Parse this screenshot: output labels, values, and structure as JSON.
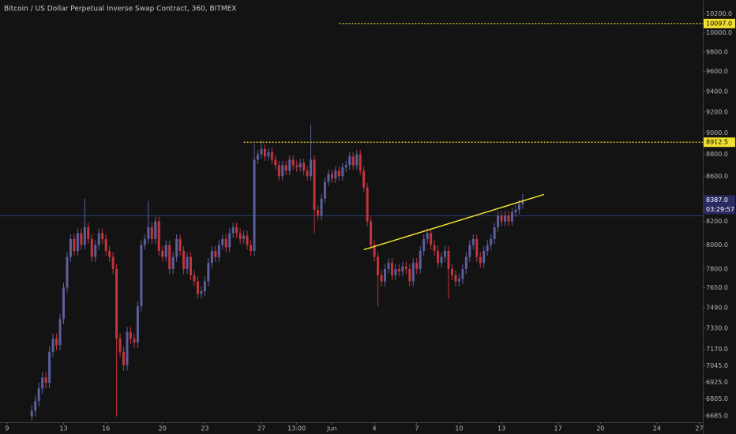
{
  "chart_data": {
    "type": "candlestick",
    "title": "Bitcoin / US Dollar Perpetual Inverse Swap Contract, 360, BITMEX",
    "yscale": "log",
    "xlim": [
      -9,
      190
    ],
    "ylim": [
      6640,
      10350
    ],
    "up_color": "#5c5f9e",
    "down_color": "#c2353e",
    "xticks": [
      {
        "value": -7,
        "label": "9"
      },
      {
        "value": 9,
        "label": "13"
      },
      {
        "value": 21,
        "label": "16"
      },
      {
        "value": 37,
        "label": "20"
      },
      {
        "value": 49,
        "label": "23"
      },
      {
        "value": 65,
        "label": "27"
      },
      {
        "value": 75,
        "label": "13:00"
      },
      {
        "value": 85,
        "label": "Jun"
      },
      {
        "value": 97,
        "label": "4"
      },
      {
        "value": 109,
        "label": "7"
      },
      {
        "value": 121,
        "label": "10"
      },
      {
        "value": 133,
        "label": "13"
      },
      {
        "value": 149,
        "label": "17"
      },
      {
        "value": 161,
        "label": "20"
      },
      {
        "value": 177,
        "label": "24"
      },
      {
        "value": 189,
        "label": "27"
      }
    ],
    "yticks": [
      {
        "value": 6685,
        "label": "6685.0"
      },
      {
        "value": 6805,
        "label": "6805.0"
      },
      {
        "value": 6925,
        "label": "6925.0"
      },
      {
        "value": 7045,
        "label": "7045.0"
      },
      {
        "value": 7170,
        "label": "7170.0"
      },
      {
        "value": 7330,
        "label": "7330.0"
      },
      {
        "value": 7490,
        "label": "7490.0"
      },
      {
        "value": 7650,
        "label": "7650.0"
      },
      {
        "value": 7800,
        "label": "7800.0"
      },
      {
        "value": 8000,
        "label": "8000.0"
      },
      {
        "value": 8200,
        "label": "8200.0"
      },
      {
        "value": 8600,
        "label": "8600.0"
      },
      {
        "value": 8800,
        "label": "8800.0"
      },
      {
        "value": 9000,
        "label": "9000.0"
      },
      {
        "value": 9200,
        "label": "9200.0"
      },
      {
        "value": 9400,
        "label": "9400.0"
      },
      {
        "value": 9600,
        "label": "9600.0"
      },
      {
        "value": 9800,
        "label": "9800.0"
      },
      {
        "value": 10000,
        "label": "10000.0"
      },
      {
        "value": 10200,
        "label": "10200.0"
      }
    ],
    "open": [
      6680,
      6720,
      6790,
      6880,
      6960,
      6920,
      7150,
      7250,
      7200,
      7400,
      7650,
      7900,
      8050,
      7950,
      8100,
      8000,
      8150,
      8050,
      7900,
      8000,
      8100,
      8050,
      7950,
      7900,
      7800,
      7250,
      7150,
      7050,
      7300,
      7250,
      7220,
      7500,
      8000,
      8050,
      8150,
      8050,
      8200,
      7950,
      7900,
      8000,
      7800,
      7900,
      8050,
      7950,
      7800,
      7900,
      7750,
      7700,
      7600,
      7620,
      7700,
      7850,
      7950,
      7900,
      8000,
      8050,
      7980,
      8100,
      8150,
      8100,
      8050,
      8080,
      8000,
      7950,
      8750,
      8800,
      8850,
      8780,
      8820,
      8750,
      8700,
      8600,
      8700,
      8650,
      8750,
      8700,
      8680,
      8720,
      8650,
      8600,
      8750,
      8300,
      8250,
      8400,
      8550,
      8620,
      8580,
      8650,
      8600,
      8680,
      8700,
      8780,
      8700,
      8800,
      8650,
      8500,
      8200,
      8000,
      7900,
      7750,
      7700,
      7800,
      7850,
      7750,
      7800,
      7780,
      7820,
      7800,
      7700,
      7850,
      7800,
      7950,
      8050,
      8100,
      8000,
      7950,
      7850,
      7900,
      7950,
      7800,
      7750,
      7700,
      7720,
      7800,
      7900,
      8000,
      8050,
      7900,
      7850,
      7950,
      8000,
      8050,
      8150,
      8250,
      8200,
      8250,
      8200,
      8280,
      8300,
      8350
    ],
    "high": [
      6760,
      6830,
      6920,
      7000,
      7000,
      7190,
      7290,
      7290,
      7440,
      7690,
      7940,
      8090,
      8090,
      8140,
      8140,
      8400,
      8190,
      8090,
      8040,
      8140,
      8140,
      8090,
      7990,
      7940,
      7840,
      7290,
      7190,
      7340,
      7340,
      7290,
      7540,
      8040,
      8090,
      8380,
      8190,
      8240,
      8240,
      7990,
      8040,
      8040,
      7940,
      8090,
      8090,
      7990,
      7940,
      7940,
      7790,
      7740,
      7660,
      7740,
      7890,
      7990,
      7990,
      8040,
      8090,
      8090,
      8140,
      8190,
      8190,
      8140,
      8120,
      8120,
      8040,
      8900,
      8840,
      8930,
      8890,
      8860,
      8860,
      8790,
      8740,
      8740,
      8740,
      8790,
      8790,
      8740,
      8760,
      8760,
      8690,
      9080,
      8790,
      8340,
      8440,
      8590,
      8660,
      8660,
      8690,
      8690,
      8720,
      8740,
      8820,
      8820,
      8840,
      8840,
      8690,
      8540,
      8240,
      8040,
      7940,
      7790,
      7840,
      7890,
      7890,
      7840,
      7840,
      7860,
      7860,
      7840,
      7890,
      7890,
      7990,
      8090,
      8140,
      8140,
      8040,
      7990,
      7940,
      7990,
      7990,
      7840,
      7790,
      7760,
      7840,
      7940,
      8040,
      8090,
      8090,
      7940,
      7990,
      8040,
      8090,
      8190,
      8290,
      8290,
      8290,
      8290,
      8320,
      8340,
      8390,
      8440
    ],
    "low": [
      6650,
      6680,
      6750,
      6840,
      6880,
      6880,
      7110,
      7160,
      7160,
      7360,
      7610,
      7860,
      7910,
      7910,
      7960,
      7960,
      8010,
      7860,
      7860,
      7960,
      8010,
      7910,
      7860,
      7760,
      6680,
      7110,
      7010,
      7010,
      7210,
      7180,
      7180,
      7460,
      7960,
      8010,
      8010,
      8010,
      7910,
      7860,
      7860,
      7760,
      7760,
      7860,
      7910,
      7760,
      7760,
      7710,
      7660,
      7560,
      7560,
      7580,
      7660,
      7810,
      7860,
      7860,
      7960,
      7940,
      7940,
      8060,
      8060,
      8010,
      8010,
      7960,
      7910,
      7910,
      8710,
      8760,
      8740,
      8740,
      8710,
      8660,
      8560,
      8560,
      8610,
      8610,
      8660,
      8640,
      8640,
      8610,
      8560,
      8560,
      8100,
      8210,
      8210,
      8360,
      8510,
      8540,
      8540,
      8560,
      8560,
      8640,
      8660,
      8660,
      8660,
      8610,
      8460,
      8160,
      7960,
      7860,
      7500,
      7660,
      7660,
      7760,
      7710,
      7710,
      7740,
      7740,
      7760,
      7660,
      7660,
      7760,
      7760,
      7910,
      8010,
      7960,
      7910,
      7810,
      7810,
      7860,
      7560,
      7710,
      7660,
      7660,
      7680,
      7760,
      7860,
      7960,
      7860,
      7810,
      7810,
      7910,
      7960,
      8010,
      8110,
      8160,
      8160,
      8160,
      8160,
      8240,
      8260,
      8310
    ],
    "close": [
      6720,
      6790,
      6880,
      6960,
      6920,
      7150,
      7250,
      7200,
      7400,
      7650,
      7900,
      8050,
      7950,
      8100,
      8000,
      8150,
      8050,
      7900,
      8000,
      8100,
      8050,
      7950,
      7900,
      7800,
      7250,
      7150,
      7050,
      7300,
      7250,
      7220,
      7500,
      8000,
      8050,
      8150,
      8050,
      8200,
      7950,
      7900,
      8000,
      7800,
      7900,
      8050,
      7950,
      7800,
      7900,
      7750,
      7700,
      7600,
      7620,
      7700,
      7850,
      7950,
      7900,
      8000,
      8050,
      7980,
      8100,
      8150,
      8100,
      8050,
      8080,
      8000,
      7950,
      8750,
      8800,
      8850,
      8780,
      8820,
      8750,
      8700,
      8600,
      8700,
      8650,
      8750,
      8700,
      8680,
      8720,
      8650,
      8600,
      8750,
      8300,
      8250,
      8400,
      8550,
      8620,
      8580,
      8650,
      8600,
      8680,
      8700,
      8780,
      8700,
      8800,
      8650,
      8500,
      8200,
      8000,
      7900,
      7750,
      7700,
      7800,
      7850,
      7750,
      7800,
      7780,
      7820,
      7800,
      7700,
      7850,
      7800,
      7950,
      8050,
      8100,
      8000,
      7950,
      7850,
      7900,
      7950,
      7800,
      7750,
      7700,
      7720,
      7800,
      7900,
      8000,
      8050,
      7900,
      7850,
      7950,
      8000,
      8050,
      8150,
      8250,
      8200,
      8250,
      8200,
      8280,
      8300,
      8350,
      8387
    ],
    "levels": [
      {
        "value": 10097,
        "label": "10097.0",
        "start_x": 87,
        "color": "#f0e130"
      },
      {
        "value": 8912.5,
        "label": "8912.5",
        "start_x": 60,
        "color": "#f0e130"
      }
    ],
    "trendline": {
      "x": [
        94,
        145
      ],
      "y": [
        7960,
        8436
      ],
      "color": "#f0e130"
    },
    "last_price": {
      "value": 8387,
      "label": "8387.0",
      "countdown": "03:29:57"
    }
  }
}
